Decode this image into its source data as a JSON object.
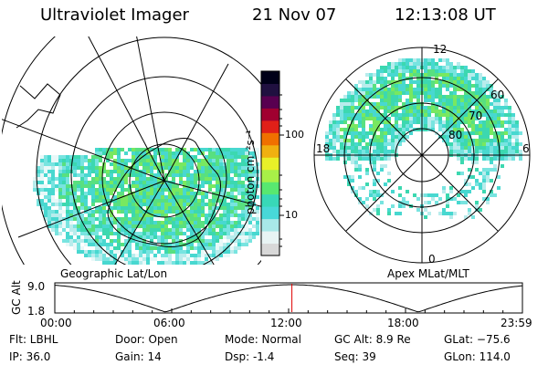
{
  "header": {
    "title": "Ultraviolet Imager",
    "date": "21 Nov 07",
    "time": "12:13:08 UT"
  },
  "colorbar": {
    "unit_label": "photon cm⁻²s⁻¹",
    "ticks": [
      {
        "label": "100",
        "value": 100
      },
      {
        "label": "10",
        "value": 10
      }
    ],
    "colors": [
      "#d8d8d8",
      "#e8f4f4",
      "#a8e8e8",
      "#48d8d8",
      "#38d8b8",
      "#58e870",
      "#a8f048",
      "#e8f028",
      "#f0b010",
      "#f07000",
      "#e02018",
      "#a00030",
      "#580050",
      "#201040",
      "#000018"
    ]
  },
  "geographic_panel": {
    "label": "Geographic Lat/Lon",
    "accent": "#48d8c8"
  },
  "magnetic_panel": {
    "label": "Apex MLat/MLT",
    "lat_labels": [
      "60",
      "70",
      "80"
    ],
    "mlt_labels": {
      "top": "12",
      "left": "18",
      "right": "6",
      "bottom": "0"
    }
  },
  "altitude_plot": {
    "ylabel": "GC Alt",
    "ytick_high": "9.0",
    "ytick_low": "1.8",
    "xticks": [
      "00:00",
      "06:00",
      "12:00",
      "18:00",
      "23:59"
    ],
    "current_time_fraction": 0.507,
    "marker_color": "#e00000"
  },
  "status": {
    "filter": "Flt: LBHL",
    "ip": "IP: 36.0",
    "door": "Door: Open",
    "gain": "Gain: 14",
    "mode": "Mode: Normal",
    "dsp": "Dsp:    -1.4",
    "gc_alt": "GC Alt: 8.9 Re",
    "seq": "Seq: 39",
    "glat": "GLat: −75.6",
    "glon": "GLon: 114.0"
  }
}
